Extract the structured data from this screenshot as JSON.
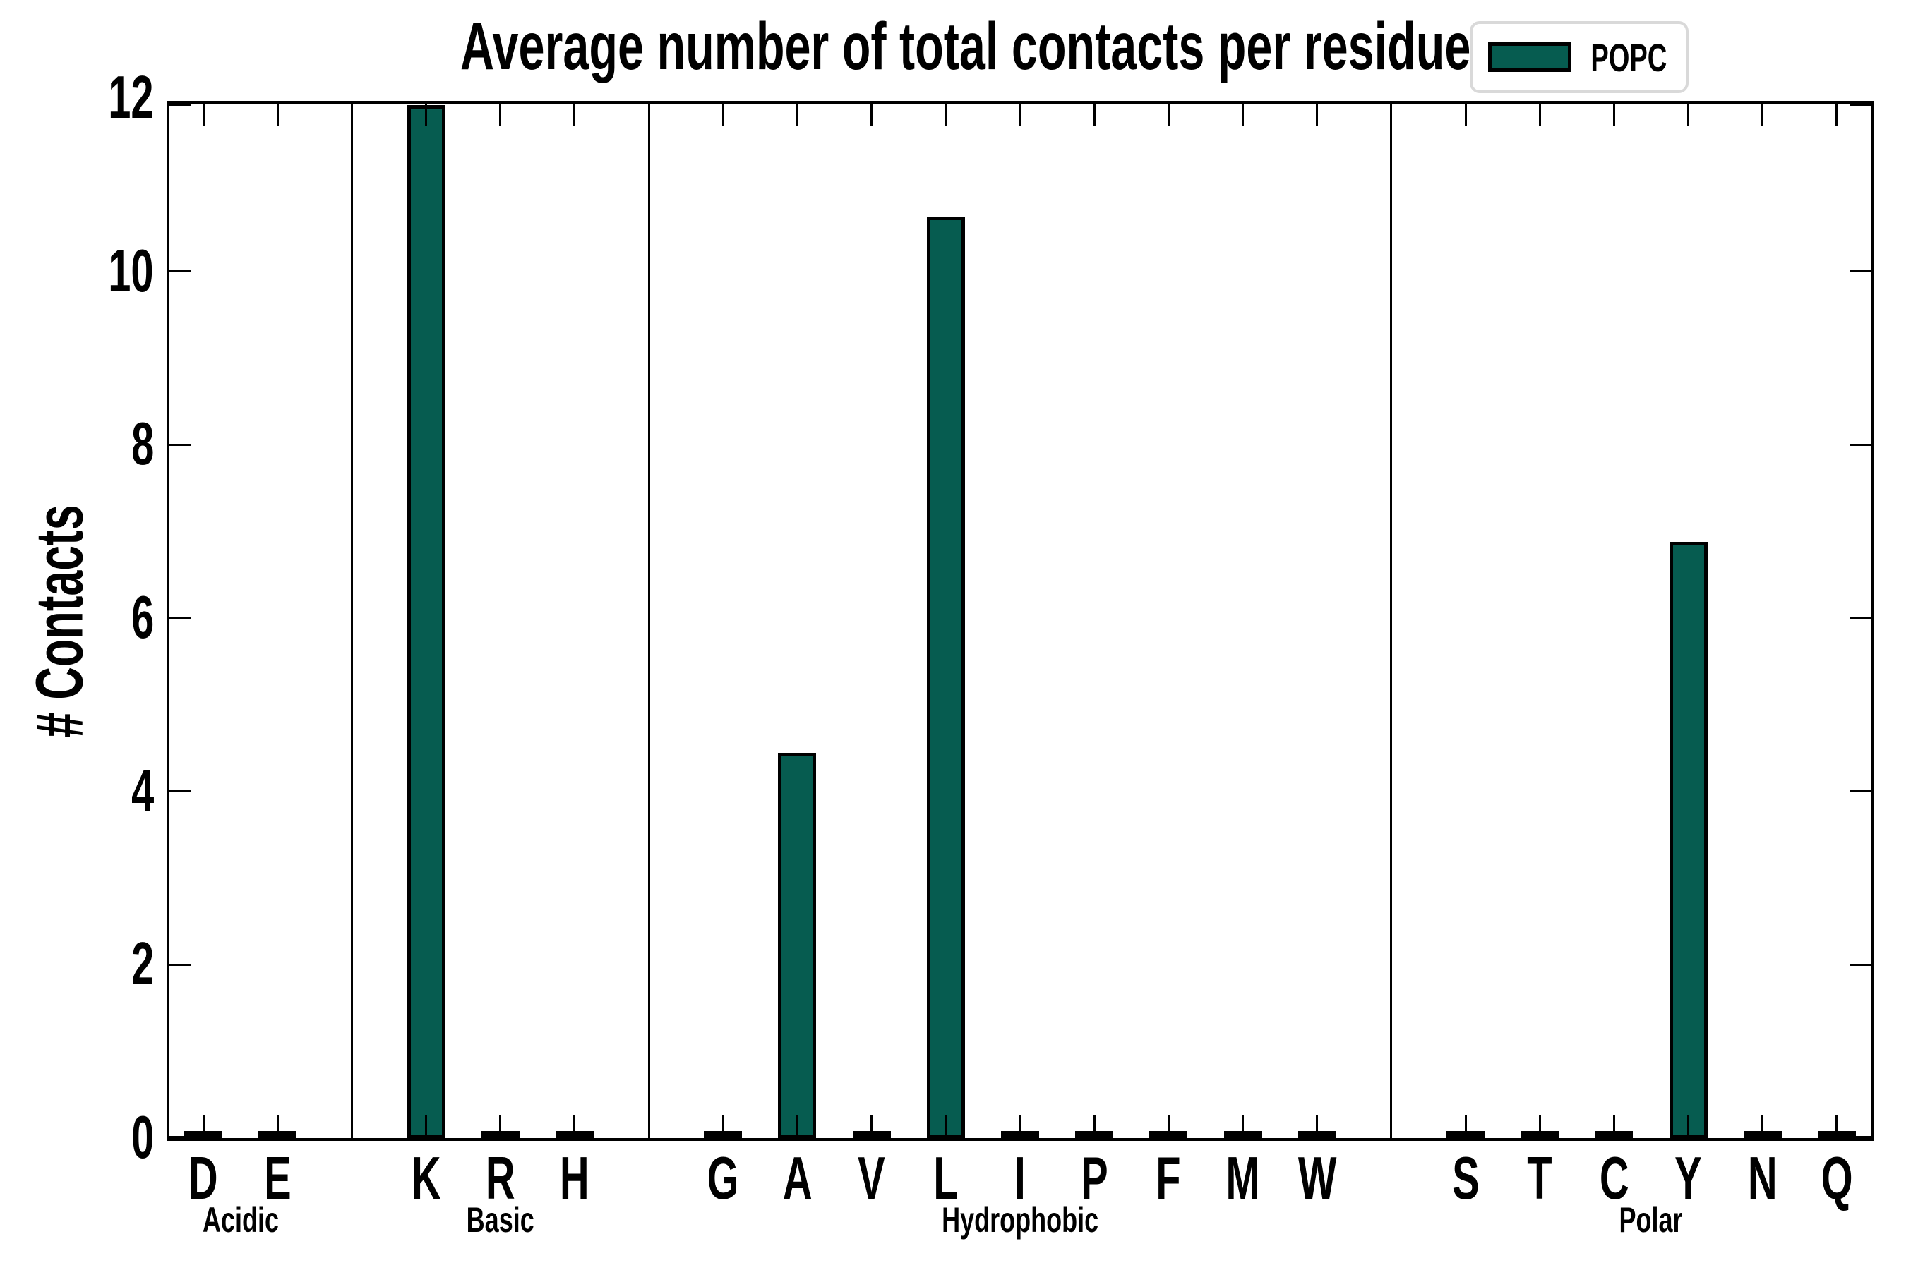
{
  "title": "Average number of total contacts per residue type",
  "ylabel": "# Contacts",
  "legend": {
    "label": "POPC"
  },
  "colors": {
    "bar_fill": "#065c50",
    "bar_edge": "#000000",
    "axis": "#000000",
    "legend_border": "#d9d9d9",
    "background": "#ffffff"
  },
  "chart_data": {
    "type": "bar",
    "title": "Average number of total contacts per residue type",
    "xlabel": "",
    "ylabel": "# Contacts",
    "ylim": [
      0,
      12
    ],
    "yticks": [
      0,
      2,
      4,
      6,
      8,
      10,
      12
    ],
    "grid": false,
    "legend_position": "upper right",
    "series_name": "POPC",
    "groups": [
      {
        "label": "Acidic",
        "categories": [
          "D",
          "E"
        ],
        "values": [
          0.03,
          0.03
        ]
      },
      {
        "label": "Basic",
        "categories": [
          "K",
          "R",
          "H"
        ],
        "values": [
          11.9,
          0.03,
          0.03
        ]
      },
      {
        "label": "Hydrophobic",
        "categories": [
          "G",
          "A",
          "V",
          "L",
          "I",
          "P",
          "F",
          "M",
          "W"
        ],
        "values": [
          0.03,
          4.43,
          0.03,
          10.62,
          0.03,
          0.03,
          0.03,
          0.03,
          0.03
        ]
      },
      {
        "label": "Polar",
        "categories": [
          "S",
          "T",
          "C",
          "Y",
          "N",
          "Q"
        ],
        "values": [
          0.03,
          0.03,
          0.03,
          6.86,
          0.03,
          0.03
        ]
      }
    ]
  }
}
